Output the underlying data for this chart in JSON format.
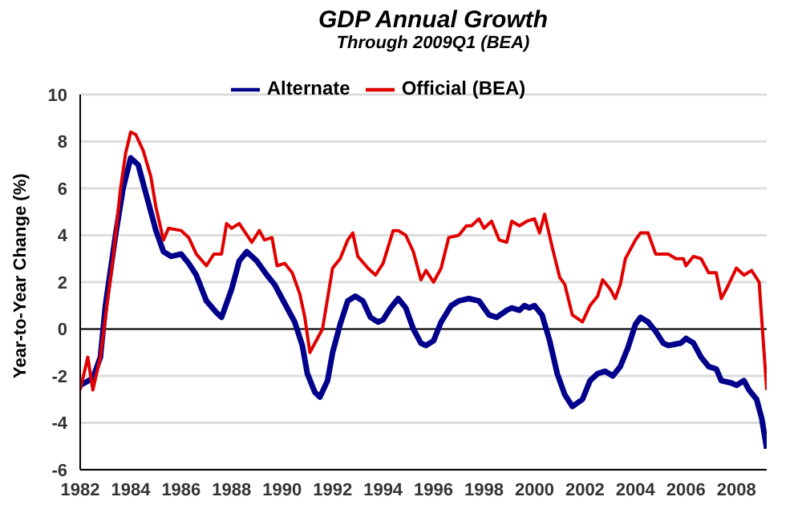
{
  "chart_data": {
    "type": "line",
    "title": "GDP Annual Growth",
    "subtitle": "Through 2009Q1 (BEA)",
    "ylabel": "Year-to-Year Change (%)",
    "xlim": [
      1982,
      2009.2
    ],
    "xticks": [
      1982,
      1984,
      1986,
      1988,
      1990,
      1992,
      1994,
      1996,
      1998,
      2000,
      2002,
      2004,
      2006,
      2008
    ],
    "ylim": [
      -6,
      10
    ],
    "yticks": [
      -6,
      -4,
      -2,
      0,
      2,
      4,
      6,
      8,
      10
    ],
    "grid": "y",
    "legend": "top",
    "line_style": "solid",
    "marker": "none",
    "ref_lines": [
      {
        "axis": "y",
        "value": 0,
        "color": "#000000"
      }
    ],
    "series": [
      {
        "name": "Official (BEA)",
        "color": "#e00000",
        "x": [
          1982,
          1982.3,
          1982.5,
          1982.8,
          1983,
          1983.3,
          1983.6,
          1983.8,
          1984,
          1984.2,
          1984.5,
          1984.8,
          1985,
          1985.3,
          1985.5,
          1986,
          1986.3,
          1986.6,
          1987,
          1987.3,
          1987.6,
          1987.8,
          1988,
          1988.3,
          1988.8,
          1989.1,
          1989.3,
          1989.6,
          1989.8,
          1990.1,
          1990.4,
          1990.7,
          1990.9,
          1991.1,
          1991.3,
          1991.6,
          1992,
          1992.3,
          1992.6,
          1992.8,
          1993,
          1993.4,
          1993.7,
          1994,
          1994.4,
          1994.6,
          1994.9,
          1995.2,
          1995.5,
          1995.7,
          1996,
          1996.3,
          1996.6,
          1997,
          1997.3,
          1997.5,
          1997.8,
          1998,
          1998.3,
          1998.6,
          1998.9,
          1999.1,
          1999.4,
          1999.7,
          2000,
          2000.2,
          2000.4,
          2000.7,
          2001,
          2001.2,
          2001.5,
          2001.9,
          2002.2,
          2002.5,
          2002.7,
          2003,
          2003.2,
          2003.4,
          2003.6,
          2004,
          2004.2,
          2004.5,
          2004.8,
          2005,
          2005.3,
          2005.6,
          2005.9,
          2006,
          2006.3,
          2006.6,
          2006.9,
          2007.2,
          2007.4,
          2007.6,
          2008,
          2008.3,
          2008.6,
          2008.9,
          2009.05,
          2009.2
        ],
        "values": [
          -2.6,
          -1.2,
          -2.6,
          -1.2,
          0.5,
          3,
          6,
          7.5,
          8.4,
          8.3,
          7.6,
          6.5,
          5.2,
          3.8,
          4.3,
          4.2,
          3.9,
          3.2,
          2.7,
          3.2,
          3.2,
          4.5,
          4.3,
          4.5,
          3.7,
          4.2,
          3.8,
          3.9,
          2.7,
          2.8,
          2.4,
          1.5,
          0.5,
          -1,
          -0.6,
          0,
          2.6,
          3,
          3.8,
          4.1,
          3.1,
          2.6,
          2.3,
          2.8,
          4.2,
          4.2,
          4,
          3.3,
          2.1,
          2.5,
          2,
          2.6,
          3.9,
          4,
          4.4,
          4.4,
          4.7,
          4.3,
          4.6,
          3.8,
          3.7,
          4.6,
          4.4,
          4.6,
          4.7,
          4.1,
          4.9,
          3.5,
          2.2,
          1.9,
          0.6,
          0.3,
          1,
          1.4,
          2.1,
          1.7,
          1.3,
          1.9,
          3,
          3.8,
          4.1,
          4.1,
          3.2,
          3.2,
          3.2,
          3,
          3,
          2.7,
          3.1,
          3,
          2.4,
          2.4,
          1.3,
          1.7,
          2.6,
          2.3,
          2.5,
          2,
          -0.3,
          -2.6
        ]
      },
      {
        "name": "Alternate",
        "color": "#00008b",
        "x": [
          1982,
          1982.5,
          1982.8,
          1983,
          1983.4,
          1983.7,
          1984,
          1984.3,
          1984.6,
          1985,
          1985.3,
          1985.6,
          1986,
          1986.3,
          1986.6,
          1987,
          1987.4,
          1987.6,
          1988,
          1988.3,
          1988.6,
          1989,
          1989.4,
          1989.7,
          1990,
          1990.5,
          1990.8,
          1991,
          1991.3,
          1991.5,
          1991.8,
          1992,
          1992.3,
          1992.6,
          1992.9,
          1993.2,
          1993.5,
          1993.8,
          1994,
          1994.3,
          1994.6,
          1994.9,
          1995.2,
          1995.5,
          1995.7,
          1996,
          1996.3,
          1996.7,
          1997,
          1997.4,
          1997.8,
          1998.2,
          1998.5,
          1998.9,
          1999.1,
          1999.4,
          1999.6,
          1999.8,
          2000,
          2000.3,
          2000.6,
          2000.9,
          2001.2,
          2001.5,
          2001.9,
          2002.2,
          2002.5,
          2002.8,
          2003.1,
          2003.4,
          2003.7,
          2004,
          2004.2,
          2004.5,
          2004.8,
          2005.1,
          2005.3,
          2005.8,
          2006,
          2006.3,
          2006.6,
          2006.9,
          2007.2,
          2007.4,
          2007.8,
          2008,
          2008.3,
          2008.5,
          2008.8,
          2009,
          2009.2
        ],
        "values": [
          -2.4,
          -2.1,
          -1.2,
          1,
          4,
          6,
          7.3,
          7,
          5.8,
          4.2,
          3.3,
          3.1,
          3.2,
          2.8,
          2.3,
          1.2,
          0.7,
          0.5,
          1.7,
          2.9,
          3.3,
          2.9,
          2.3,
          1.9,
          1.3,
          0.3,
          -0.7,
          -1.9,
          -2.7,
          -2.9,
          -2.2,
          -1,
          0.2,
          1.2,
          1.4,
          1.2,
          0.5,
          0.3,
          0.4,
          0.9,
          1.3,
          0.9,
          0,
          -0.6,
          -0.7,
          -0.5,
          0.3,
          1,
          1.2,
          1.3,
          1.2,
          0.6,
          0.5,
          0.8,
          0.9,
          0.8,
          1,
          0.9,
          1,
          0.6,
          -0.5,
          -1.9,
          -2.8,
          -3.3,
          -3,
          -2.2,
          -1.9,
          -1.8,
          -2,
          -1.6,
          -0.8,
          0.2,
          0.5,
          0.3,
          -0.1,
          -0.6,
          -0.7,
          -0.6,
          -0.4,
          -0.6,
          -1.2,
          -1.6,
          -1.7,
          -2.2,
          -2.3,
          -2.4,
          -2.2,
          -2.6,
          -3,
          -3.8,
          -5.1
        ]
      }
    ]
  }
}
